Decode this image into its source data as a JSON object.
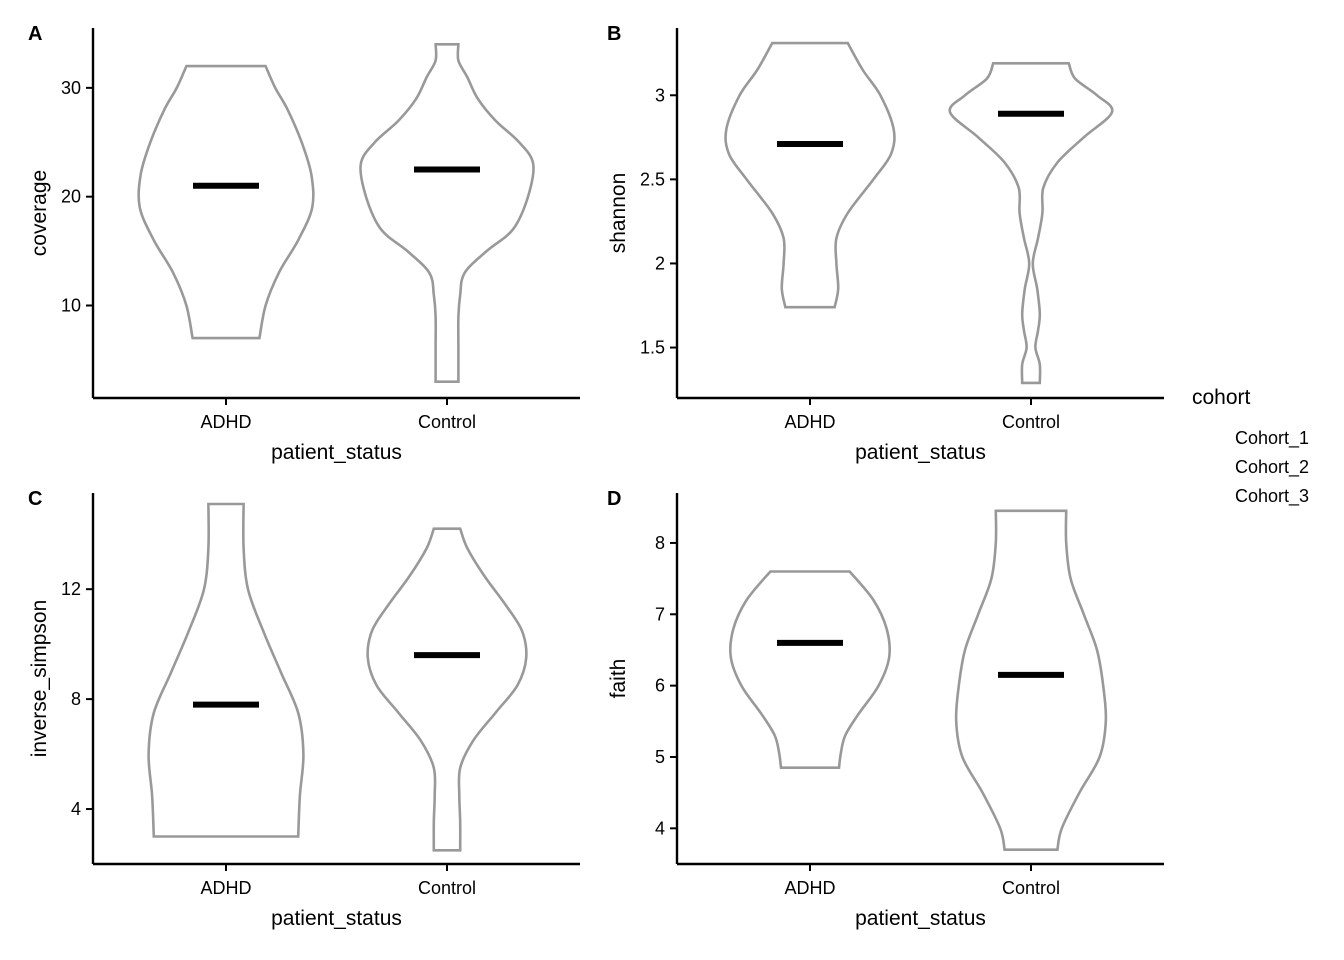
{
  "chart_data": [
    {
      "type": "violin",
      "panel": "A",
      "xlabel": "patient_status",
      "ylabel": "coverage",
      "categories": [
        "ADHD",
        "Control"
      ],
      "ylim": [
        1.5,
        35.5
      ],
      "yticks": [
        10,
        20,
        30
      ],
      "series": [
        {
          "category": "ADHD",
          "median": 21,
          "min": 7,
          "max": 32,
          "profile": [
            [
              7,
              0.38
            ],
            [
              10,
              0.45
            ],
            [
              13,
              0.6
            ],
            [
              16,
              0.82
            ],
            [
              19,
              0.98
            ],
            [
              22,
              0.97
            ],
            [
              25,
              0.86
            ],
            [
              28,
              0.7
            ],
            [
              30,
              0.56
            ],
            [
              32,
              0.45
            ]
          ]
        },
        {
          "category": "Control",
          "median": 22.5,
          "min": 3,
          "max": 34,
          "profile": [
            [
              3,
              0.13
            ],
            [
              6,
              0.13
            ],
            [
              9,
              0.13
            ],
            [
              11,
              0.15
            ],
            [
              13,
              0.2
            ],
            [
              15,
              0.45
            ],
            [
              17,
              0.75
            ],
            [
              20,
              0.92
            ],
            [
              23,
              0.98
            ],
            [
              25,
              0.82
            ],
            [
              27,
              0.55
            ],
            [
              29,
              0.35
            ],
            [
              31,
              0.23
            ],
            [
              32.5,
              0.13
            ],
            [
              34,
              0.13
            ]
          ]
        }
      ]
    },
    {
      "type": "violin",
      "panel": "B",
      "xlabel": "patient_status",
      "ylabel": "shannon",
      "categories": [
        "ADHD",
        "Control"
      ],
      "ylim": [
        1.2,
        3.4
      ],
      "yticks": [
        1.5,
        2.0,
        2.5,
        3.0
      ],
      "series": [
        {
          "category": "ADHD",
          "median": 2.71,
          "min": 1.74,
          "max": 3.31,
          "profile": [
            [
              1.74,
              0.28
            ],
            [
              1.85,
              0.32
            ],
            [
              2.0,
              0.3
            ],
            [
              2.15,
              0.3
            ],
            [
              2.3,
              0.43
            ],
            [
              2.5,
              0.72
            ],
            [
              2.65,
              0.92
            ],
            [
              2.8,
              0.95
            ],
            [
              3.0,
              0.8
            ],
            [
              3.15,
              0.6
            ],
            [
              3.31,
              0.43
            ]
          ]
        },
        {
          "category": "Control",
          "median": 2.89,
          "min": 1.29,
          "max": 3.19,
          "profile": [
            [
              1.29,
              0.1
            ],
            [
              1.4,
              0.1
            ],
            [
              1.5,
              0.05
            ],
            [
              1.6,
              0.08
            ],
            [
              1.7,
              0.1
            ],
            [
              1.85,
              0.07
            ],
            [
              2.0,
              0.02
            ],
            [
              2.15,
              0.08
            ],
            [
              2.3,
              0.13
            ],
            [
              2.45,
              0.14
            ],
            [
              2.6,
              0.3
            ],
            [
              2.75,
              0.6
            ],
            [
              2.9,
              0.92
            ],
            [
              3.0,
              0.75
            ],
            [
              3.1,
              0.5
            ],
            [
              3.19,
              0.43
            ]
          ]
        }
      ]
    },
    {
      "type": "violin",
      "panel": "C",
      "xlabel": "patient_status",
      "ylabel": "inverse_simpson",
      "categories": [
        "ADHD",
        "Control"
      ],
      "ylim": [
        2,
        15.5
      ],
      "yticks": [
        4,
        8,
        12
      ],
      "series": [
        {
          "category": "ADHD",
          "median": 7.8,
          "min": 3.0,
          "max": 15.1,
          "profile": [
            [
              3,
              0.82
            ],
            [
              4.5,
              0.84
            ],
            [
              6,
              0.88
            ],
            [
              7.5,
              0.82
            ],
            [
              9,
              0.62
            ],
            [
              10.5,
              0.42
            ],
            [
              12,
              0.25
            ],
            [
              13.5,
              0.2
            ],
            [
              15.1,
              0.2
            ]
          ]
        },
        {
          "category": "Control",
          "median": 9.6,
          "min": 2.5,
          "max": 14.2,
          "profile": [
            [
              2.5,
              0.15
            ],
            [
              3.5,
              0.15
            ],
            [
              4.5,
              0.14
            ],
            [
              5.5,
              0.15
            ],
            [
              6.5,
              0.3
            ],
            [
              7.5,
              0.55
            ],
            [
              8.5,
              0.8
            ],
            [
              9.5,
              0.9
            ],
            [
              10.5,
              0.85
            ],
            [
              11.5,
              0.65
            ],
            [
              12.5,
              0.42
            ],
            [
              13.5,
              0.23
            ],
            [
              14.2,
              0.15
            ]
          ]
        }
      ]
    },
    {
      "type": "violin",
      "panel": "D",
      "xlabel": "patient_status",
      "ylabel": "faith",
      "categories": [
        "ADHD",
        "Control"
      ],
      "ylim": [
        3.5,
        8.7
      ],
      "yticks": [
        4,
        5,
        6,
        7,
        8
      ],
      "series": [
        {
          "category": "ADHD",
          "median": 6.6,
          "min": 4.85,
          "max": 7.6,
          "profile": [
            [
              4.85,
              0.33
            ],
            [
              5.05,
              0.35
            ],
            [
              5.3,
              0.4
            ],
            [
              5.6,
              0.55
            ],
            [
              6.0,
              0.78
            ],
            [
              6.4,
              0.9
            ],
            [
              6.8,
              0.87
            ],
            [
              7.2,
              0.72
            ],
            [
              7.6,
              0.45
            ]
          ]
        },
        {
          "category": "Control",
          "median": 6.15,
          "min": 3.7,
          "max": 8.45,
          "profile": [
            [
              3.7,
              0.3
            ],
            [
              4.0,
              0.35
            ],
            [
              4.5,
              0.55
            ],
            [
              5.0,
              0.78
            ],
            [
              5.5,
              0.85
            ],
            [
              6.0,
              0.82
            ],
            [
              6.5,
              0.75
            ],
            [
              7.0,
              0.6
            ],
            [
              7.5,
              0.45
            ],
            [
              8.0,
              0.4
            ],
            [
              8.45,
              0.4
            ]
          ]
        }
      ]
    }
  ],
  "legend": {
    "title": "cohort",
    "items": [
      "Cohort_1",
      "Cohort_2",
      "Cohort_3"
    ]
  }
}
